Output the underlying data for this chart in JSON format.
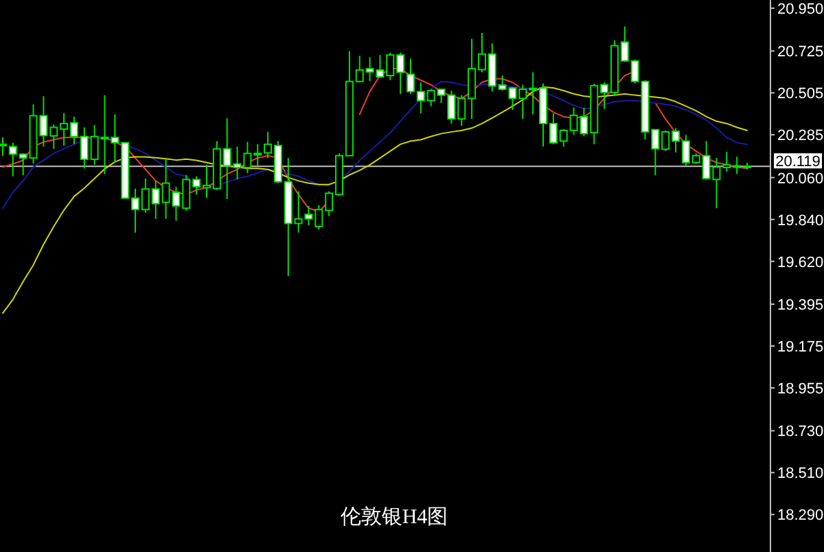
{
  "chart_data": {
    "type": "candlestick",
    "title": "伦敦银H4图",
    "color": "#00e000",
    "categories": [
      null,
      null,
      null,
      null,
      null,
      null,
      null,
      null,
      null,
      null,
      null,
      null,
      null,
      null,
      null,
      null,
      null,
      null,
      null,
      null,
      null,
      null,
      null,
      null,
      null,
      null,
      null,
      null,
      null,
      null,
      null,
      null,
      null,
      null,
      null,
      null,
      null,
      null,
      null,
      null,
      null,
      null,
      null,
      null,
      null,
      null,
      null,
      null,
      null,
      null,
      null,
      null,
      null,
      null,
      null,
      null,
      null,
      null,
      null,
      null,
      null,
      null,
      null,
      null,
      null,
      null,
      null,
      null,
      null,
      null,
      null,
      null,
      null,
      null
    ],
    "ohlc": [
      [
        20.235,
        20.272,
        20.175,
        20.235
      ],
      [
        20.223,
        20.243,
        20.067,
        20.183
      ],
      [
        20.183,
        20.187,
        20.072,
        20.163
      ],
      [
        20.163,
        20.445,
        20.134,
        20.385
      ],
      [
        20.385,
        20.488,
        20.223,
        20.281
      ],
      [
        20.279,
        20.339,
        20.211,
        20.324
      ],
      [
        20.315,
        20.399,
        20.228,
        20.344
      ],
      [
        20.348,
        20.38,
        20.235,
        20.276
      ],
      [
        20.276,
        20.324,
        20.108,
        20.156
      ],
      [
        20.156,
        20.336,
        20.127,
        20.276
      ],
      [
        20.271,
        20.493,
        20.079,
        20.271
      ],
      [
        20.271,
        20.392,
        20.139,
        20.243
      ],
      [
        20.243,
        20.243,
        19.952,
        19.952
      ],
      [
        19.952,
        20.002,
        19.771,
        19.892
      ],
      [
        19.892,
        20.055,
        19.875,
        20.0
      ],
      [
        20.0,
        20.043,
        19.843,
        19.923
      ],
      [
        19.93,
        20.159,
        19.843,
        20.031
      ],
      [
        19.983,
        20.012,
        19.834,
        19.911
      ],
      [
        19.899,
        20.074,
        19.887,
        20.05
      ],
      [
        20.05,
        20.067,
        19.971,
        20.012
      ],
      [
        20.007,
        20.127,
        19.954,
        20.019
      ],
      [
        20.002,
        20.252,
        19.995,
        20.211
      ],
      [
        20.211,
        20.372,
        19.947,
        20.122
      ],
      [
        20.132,
        20.223,
        20.05,
        20.113
      ],
      [
        20.113,
        20.248,
        20.084,
        20.187
      ],
      [
        20.18,
        20.235,
        20.122,
        20.187
      ],
      [
        20.19,
        20.3,
        20.163,
        20.235
      ],
      [
        20.228,
        20.252,
        20.031,
        20.038
      ],
      [
        20.038,
        20.163,
        19.543,
        19.819
      ],
      [
        19.819,
        19.988,
        19.771,
        19.843
      ],
      [
        19.867,
        19.911,
        19.81,
        19.843
      ],
      [
        19.803,
        19.916,
        19.786,
        19.892
      ],
      [
        19.887,
        19.988,
        19.858,
        19.978
      ],
      [
        19.971,
        20.187,
        19.964,
        20.175
      ],
      [
        20.175,
        20.724,
        20.175,
        20.565
      ],
      [
        20.565,
        20.7,
        20.56,
        20.625
      ],
      [
        20.632,
        20.692,
        20.567,
        20.615
      ],
      [
        20.625,
        20.704,
        20.584,
        20.589
      ],
      [
        20.596,
        20.716,
        20.572,
        20.704
      ],
      [
        20.704,
        20.716,
        20.5,
        20.613
      ],
      [
        20.603,
        20.685,
        20.5,
        20.512
      ],
      [
        20.512,
        20.56,
        20.397,
        20.464
      ],
      [
        20.464,
        20.524,
        20.435,
        20.517
      ],
      [
        20.524,
        20.524,
        20.452,
        20.493
      ],
      [
        20.493,
        20.517,
        20.344,
        20.368
      ],
      [
        20.368,
        20.493,
        20.332,
        20.476
      ],
      [
        20.476,
        20.789,
        20.368,
        20.632
      ],
      [
        20.627,
        20.82,
        20.613,
        20.709
      ],
      [
        20.709,
        20.765,
        20.512,
        20.541
      ],
      [
        20.546,
        20.596,
        20.517,
        20.524
      ],
      [
        20.531,
        20.536,
        20.416,
        20.476
      ],
      [
        20.476,
        20.548,
        20.368,
        20.524
      ],
      [
        20.524,
        20.613,
        20.392,
        20.529
      ],
      [
        20.531,
        20.555,
        20.223,
        20.344
      ],
      [
        20.344,
        20.397,
        20.235,
        20.243
      ],
      [
        20.252,
        20.315,
        20.223,
        20.308
      ],
      [
        20.308,
        20.428,
        20.284,
        20.387
      ],
      [
        20.38,
        20.428,
        20.277,
        20.291
      ],
      [
        20.296,
        20.553,
        20.235,
        20.543
      ],
      [
        20.548,
        20.56,
        20.421,
        20.507
      ],
      [
        20.507,
        20.781,
        20.488,
        20.753
      ],
      [
        20.772,
        20.854,
        20.668,
        20.673
      ],
      [
        20.673,
        20.68,
        20.555,
        20.565
      ],
      [
        20.565,
        20.572,
        20.26,
        20.3
      ],
      [
        20.312,
        20.315,
        20.072,
        20.211
      ],
      [
        20.209,
        20.308,
        20.199,
        20.3
      ],
      [
        20.303,
        20.32,
        20.192,
        20.252
      ],
      [
        20.252,
        20.284,
        20.122,
        20.139
      ],
      [
        20.139,
        20.187,
        20.132,
        20.175
      ],
      [
        20.175,
        20.252,
        20.05,
        20.055
      ],
      [
        20.05,
        20.163,
        19.899,
        20.115
      ],
      [
        20.113,
        20.195,
        20.091,
        20.127
      ],
      [
        20.122,
        20.17,
        20.079,
        20.122
      ],
      [
        20.12,
        20.139,
        20.103,
        20.119
      ]
    ],
    "series": [
      {
        "type": "line",
        "color": "#e8402a",
        "values": [
          20.115,
          20.132,
          20.151,
          20.223,
          20.247,
          20.259,
          20.271,
          20.271,
          20.271,
          20.271,
          20.271,
          20.247,
          20.223,
          20.163,
          20.103,
          20.043,
          20.007,
          19.983,
          19.971,
          19.995,
          20.007,
          20.043,
          20.079,
          20.103,
          20.139,
          20.163,
          20.175,
          20.163,
          20.055,
          19.971,
          19.899,
          19.882,
          19.935,
          null,
          null,
          20.392,
          20.512,
          20.596,
          20.632,
          20.632,
          20.596,
          20.572,
          20.548,
          20.512,
          20.488,
          20.476,
          20.512,
          20.56,
          20.579,
          20.579,
          20.56,
          20.524,
          20.488,
          20.44,
          20.404,
          20.38,
          20.373,
          20.38,
          20.416,
          20.476,
          20.536,
          20.596,
          20.62,
          null,
          20.452,
          20.368,
          20.296,
          20.235,
          20.199,
          20.163,
          20.139,
          20.127,
          20.115,
          20.108
        ]
      },
      {
        "type": "line",
        "color": "#1a1aa8",
        "values": [
          19.899,
          19.983,
          20.043,
          20.115,
          20.151,
          20.187,
          20.211,
          20.235,
          20.259,
          20.271,
          20.271,
          20.259,
          20.235,
          20.211,
          20.187,
          20.151,
          20.115,
          20.079,
          20.067,
          20.007,
          20.007,
          20.019,
          20.036,
          20.055,
          20.067,
          20.084,
          20.103,
          20.098,
          20.079,
          20.067,
          20.043,
          20.024,
          20.019,
          20.043,
          20.091,
          20.151,
          20.199,
          20.247,
          20.296,
          20.356,
          20.416,
          20.476,
          20.524,
          20.565,
          20.56,
          20.548,
          20.541,
          20.548,
          20.553,
          20.548,
          20.536,
          20.531,
          20.524,
          20.512,
          20.488,
          20.464,
          20.44,
          20.421,
          20.428,
          20.445,
          20.459,
          20.464,
          20.464,
          20.459,
          20.452,
          20.445,
          20.435,
          20.416,
          20.392,
          20.363,
          20.32,
          20.271,
          20.243,
          20.235
        ]
      },
      {
        "type": "line",
        "color": "#d4d400",
        "values": [
          19.348,
          19.42,
          19.514,
          19.601,
          19.709,
          19.803,
          19.889,
          19.961,
          20.005,
          20.055,
          20.106,
          20.142,
          20.164,
          20.169,
          20.169,
          20.164,
          20.159,
          20.152,
          20.157,
          20.151,
          20.139,
          20.127,
          20.122,
          20.115,
          20.108,
          20.108,
          20.103,
          20.084,
          20.06,
          20.043,
          20.031,
          20.024,
          20.024,
          20.043,
          20.074,
          20.098,
          20.127,
          20.163,
          20.199,
          20.235,
          20.252,
          20.259,
          20.276,
          20.291,
          20.3,
          20.308,
          20.32,
          20.344,
          20.373,
          20.404,
          20.435,
          20.469,
          20.512,
          20.536,
          20.531,
          20.517,
          20.5,
          20.488,
          20.483,
          20.488,
          20.493,
          20.5,
          20.493,
          20.488,
          20.483,
          20.476,
          20.459,
          20.435,
          20.411,
          20.38,
          20.356,
          20.344,
          20.324,
          20.308
        ]
      }
    ],
    "ylim": [
      18.093,
      20.993
    ],
    "yticks": [
      {
        "value": 20.95,
        "label": "20.950"
      },
      {
        "value": 20.725,
        "label": "20.725"
      },
      {
        "value": 20.505,
        "label": "20.505"
      },
      {
        "value": 20.285,
        "label": "20.285"
      },
      {
        "value": 20.06,
        "label": "20.060"
      },
      {
        "value": 19.84,
        "label": "19.840"
      },
      {
        "value": 19.62,
        "label": "19.620"
      },
      {
        "value": 19.395,
        "label": "19.395"
      },
      {
        "value": 19.175,
        "label": "19.175"
      },
      {
        "value": 18.955,
        "label": "18.955"
      },
      {
        "value": 18.73,
        "label": "18.730"
      },
      {
        "value": 18.51,
        "label": "18.510"
      },
      {
        "value": 18.29,
        "label": "18.290"
      }
    ],
    "ref_lines": [
      {
        "axis": "y",
        "value": 20.119,
        "label": "20.119",
        "color": "#c0c0c0"
      }
    ]
  }
}
